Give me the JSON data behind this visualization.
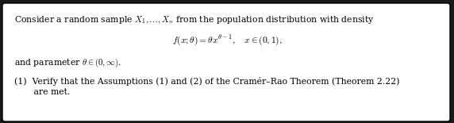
{
  "background_color": "#ffffff",
  "outer_background": "#1a1a1a",
  "border_color": "#000000",
  "text_color": "#000000",
  "figsize": [
    5.72,
    1.55
  ],
  "dpi": 100,
  "line1": "Consider a random sample $X_1, \\ldots, X_n$ from the population distribution with density",
  "line2": "$f(x;\\theta) = \\theta x^{\\theta-1}, \\quad x \\in (0, 1),$",
  "line3": "and parameter $\\theta \\in (0, \\infty)$.",
  "line4": "(1)  Verify that the Assumptions (1) and (2) of the Cramér–Rao Theorem (Theorem 2.22)",
  "line5": "       are met.",
  "font_size": 7.8
}
